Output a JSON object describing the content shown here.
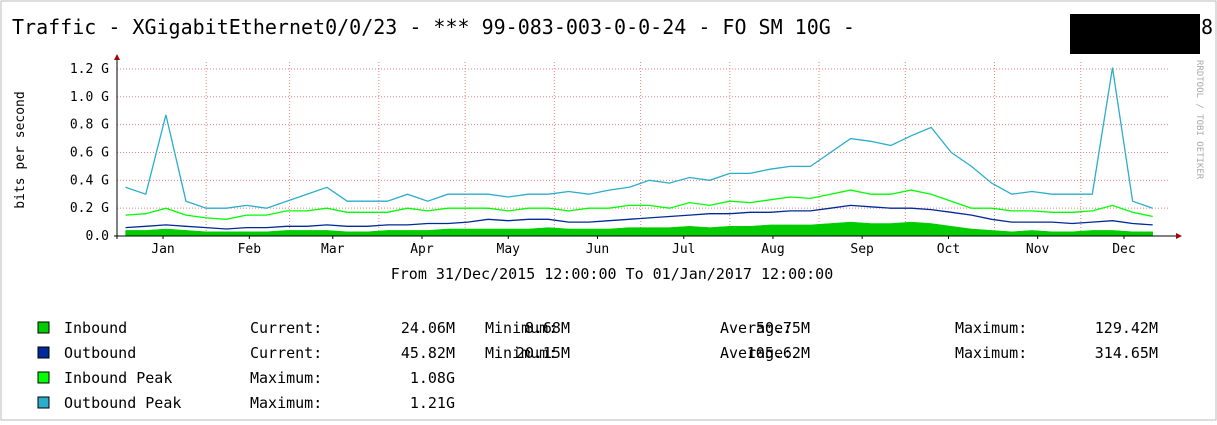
{
  "chart_data": {
    "type": "line",
    "title": "Traffic - XGigabitEthernet0/0/23 - *** 99-083-003-0-0-24 - FO SM 10G -",
    "title_tail": "8",
    "watermark": "RRDTOOL / TOBI OETIKER",
    "y_label": "bits per second",
    "subtitle": "From 31/Dec/2015 12:00:00 To 01/Jan/2017 12:00:00",
    "xlim": [
      0,
      366
    ],
    "xticks": [
      {
        "value": 16,
        "label": "Jan"
      },
      {
        "value": 46,
        "label": "Feb"
      },
      {
        "value": 75,
        "label": "Mar"
      },
      {
        "value": 106,
        "label": "Apr"
      },
      {
        "value": 136,
        "label": "May"
      },
      {
        "value": 167,
        "label": "Jun"
      },
      {
        "value": 197,
        "label": "Jul"
      },
      {
        "value": 228,
        "label": "Aug"
      },
      {
        "value": 259,
        "label": "Sep"
      },
      {
        "value": 289,
        "label": "Oct"
      },
      {
        "value": 320,
        "label": "Nov"
      },
      {
        "value": 350,
        "label": "Dec"
      }
    ],
    "xgrid": [
      0,
      31,
      60,
      91,
      121,
      152,
      182,
      213,
      244,
      274,
      305,
      335
    ],
    "ylim": [
      0,
      1250000000.0
    ],
    "yticks": [
      {
        "value": 0,
        "label": "0.0"
      },
      {
        "value": 200000000.0,
        "label": "0.2 G"
      },
      {
        "value": 400000000.0,
        "label": "0.4 G"
      },
      {
        "value": 600000000.0,
        "label": "0.6 G"
      },
      {
        "value": 800000000.0,
        "label": "0.8 G"
      },
      {
        "value": 1000000000.0,
        "label": "1.0 G"
      },
      {
        "value": 1200000000.0,
        "label": "1.2 G"
      }
    ],
    "grid": true,
    "x": [
      3,
      10,
      17,
      24,
      31,
      38,
      45,
      52,
      59,
      66,
      73,
      80,
      87,
      94,
      101,
      108,
      115,
      122,
      129,
      136,
      143,
      150,
      157,
      164,
      171,
      178,
      185,
      192,
      199,
      206,
      213,
      220,
      227,
      234,
      241,
      248,
      255,
      262,
      269,
      276,
      283,
      290,
      297,
      304,
      311,
      318,
      325,
      332,
      339,
      346,
      353,
      360
    ],
    "series": [
      {
        "name": "Inbound",
        "color": "#00cc00",
        "style": "area",
        "values": [
          40000000.0,
          40000000.0,
          50000000.0,
          40000000.0,
          30000000.0,
          30000000.0,
          30000000.0,
          30000000.0,
          40000000.0,
          40000000.0,
          40000000.0,
          30000000.0,
          30000000.0,
          40000000.0,
          40000000.0,
          40000000.0,
          50000000.0,
          50000000.0,
          50000000.0,
          50000000.0,
          50000000.0,
          60000000.0,
          50000000.0,
          50000000.0,
          50000000.0,
          60000000.0,
          60000000.0,
          60000000.0,
          70000000.0,
          60000000.0,
          70000000.0,
          70000000.0,
          80000000.0,
          80000000.0,
          80000000.0,
          90000000.0,
          100000000.0,
          90000000.0,
          90000000.0,
          100000000.0,
          90000000.0,
          70000000.0,
          50000000.0,
          40000000.0,
          30000000.0,
          40000000.0,
          30000000.0,
          30000000.0,
          40000000.0,
          40000000.0,
          30000000.0,
          30000000.0
        ],
        "stats": [
          {
            "label": "Current:",
            "value": "24.06M"
          },
          {
            "label": "Minimum:",
            "value": "8.68M"
          },
          {
            "label": "Average:",
            "value": "50.75M"
          },
          {
            "label": "Maximum:",
            "value": "129.42M"
          }
        ]
      },
      {
        "name": "Outbound",
        "color": "#002a97",
        "style": "line",
        "values": [
          60000000.0,
          70000000.0,
          80000000.0,
          70000000.0,
          60000000.0,
          50000000.0,
          60000000.0,
          60000000.0,
          70000000.0,
          70000000.0,
          80000000.0,
          70000000.0,
          70000000.0,
          80000000.0,
          80000000.0,
          90000000.0,
          90000000.0,
          100000000.0,
          120000000.0,
          110000000.0,
          120000000.0,
          120000000.0,
          100000000.0,
          100000000.0,
          110000000.0,
          120000000.0,
          130000000.0,
          140000000.0,
          150000000.0,
          160000000.0,
          160000000.0,
          170000000.0,
          170000000.0,
          180000000.0,
          180000000.0,
          200000000.0,
          220000000.0,
          210000000.0,
          200000000.0,
          200000000.0,
          190000000.0,
          170000000.0,
          150000000.0,
          120000000.0,
          100000000.0,
          100000000.0,
          100000000.0,
          90000000.0,
          100000000.0,
          110000000.0,
          90000000.0,
          80000000.0
        ],
        "stats": [
          {
            "label": "Current:",
            "value": "45.82M"
          },
          {
            "label": "Minimum:",
            "value": "20.15M"
          },
          {
            "label": "Average:",
            "value": "105.62M"
          },
          {
            "label": "Maximum:",
            "value": "314.65M"
          }
        ]
      },
      {
        "name": "Inbound Peak",
        "color": "#00ff00",
        "style": "line",
        "values": [
          150000000.0,
          160000000.0,
          200000000.0,
          150000000.0,
          130000000.0,
          120000000.0,
          150000000.0,
          150000000.0,
          180000000.0,
          180000000.0,
          200000000.0,
          170000000.0,
          170000000.0,
          170000000.0,
          200000000.0,
          180000000.0,
          200000000.0,
          200000000.0,
          200000000.0,
          180000000.0,
          200000000.0,
          200000000.0,
          180000000.0,
          200000000.0,
          200000000.0,
          220000000.0,
          220000000.0,
          200000000.0,
          240000000.0,
          220000000.0,
          250000000.0,
          240000000.0,
          260000000.0,
          280000000.0,
          270000000.0,
          300000000.0,
          330000000.0,
          300000000.0,
          300000000.0,
          330000000.0,
          300000000.0,
          250000000.0,
          200000000.0,
          200000000.0,
          180000000.0,
          180000000.0,
          170000000.0,
          170000000.0,
          180000000.0,
          220000000.0,
          170000000.0,
          140000000.0
        ],
        "stats": [
          {
            "label": "Maximum:",
            "value": "1.08G"
          }
        ]
      },
      {
        "name": "Outbound Peak",
        "color": "#2aaecb",
        "style": "line",
        "values": [
          350000000.0,
          300000000.0,
          870000000.0,
          250000000.0,
          200000000.0,
          200000000.0,
          220000000.0,
          200000000.0,
          250000000.0,
          300000000.0,
          350000000.0,
          250000000.0,
          250000000.0,
          250000000.0,
          300000000.0,
          250000000.0,
          300000000.0,
          300000000.0,
          300000000.0,
          280000000.0,
          300000000.0,
          300000000.0,
          320000000.0,
          300000000.0,
          330000000.0,
          350000000.0,
          400000000.0,
          380000000.0,
          420000000.0,
          400000000.0,
          450000000.0,
          450000000.0,
          480000000.0,
          500000000.0,
          500000000.0,
          600000000.0,
          700000000.0,
          680000000.0,
          650000000.0,
          720000000.0,
          780000000.0,
          600000000.0,
          500000000.0,
          380000000.0,
          300000000.0,
          320000000.0,
          300000000.0,
          300000000.0,
          300000000.0,
          1210000000.0,
          250000000.0,
          200000000.0
        ],
        "stats": [
          {
            "label": "Maximum:",
            "value": "1.21G"
          }
        ]
      }
    ]
  }
}
